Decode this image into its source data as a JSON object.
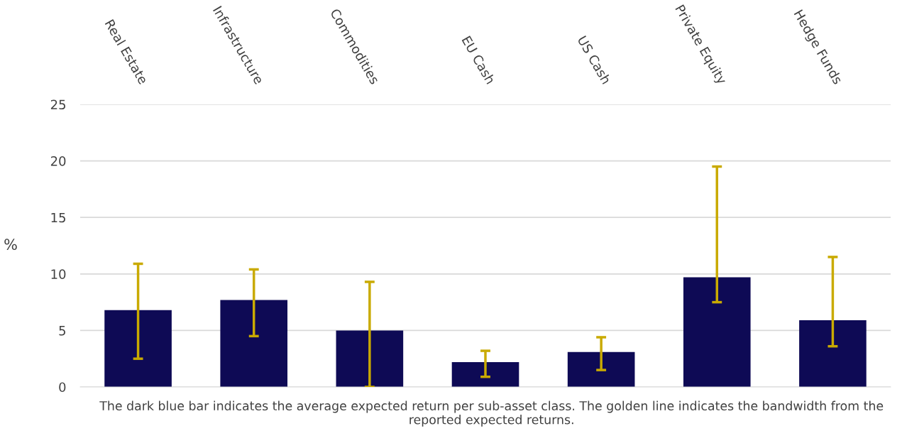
{
  "chart_data": {
    "type": "bar",
    "ylabel": "%",
    "categories": [
      "Real Estate",
      "Infrastructure",
      "Commodities",
      "EU Cash",
      "US Cash",
      "Private Equity",
      "Hedge Funds"
    ],
    "values": [
      6.8,
      7.7,
      5.0,
      2.2,
      3.1,
      9.7,
      5.9
    ],
    "color": "#0e0a55",
    "errors": [
      [
        2.5,
        10.9
      ],
      [
        4.5,
        10.4
      ],
      [
        0,
        9.3
      ],
      [
        0.9,
        3.2
      ],
      [
        1.5,
        4.4
      ],
      [
        7.5,
        19.5
      ],
      [
        3.6,
        11.5
      ]
    ],
    "ylim": [
      0,
      25
    ],
    "yticks": [
      0,
      5,
      10,
      15,
      20,
      25
    ],
    "grid": "y",
    "annotations": [
      "The dark blue bar indicates the average expected return per sub-asset class. The golden line indicates the bandwidth from the reported expected returns."
    ]
  }
}
